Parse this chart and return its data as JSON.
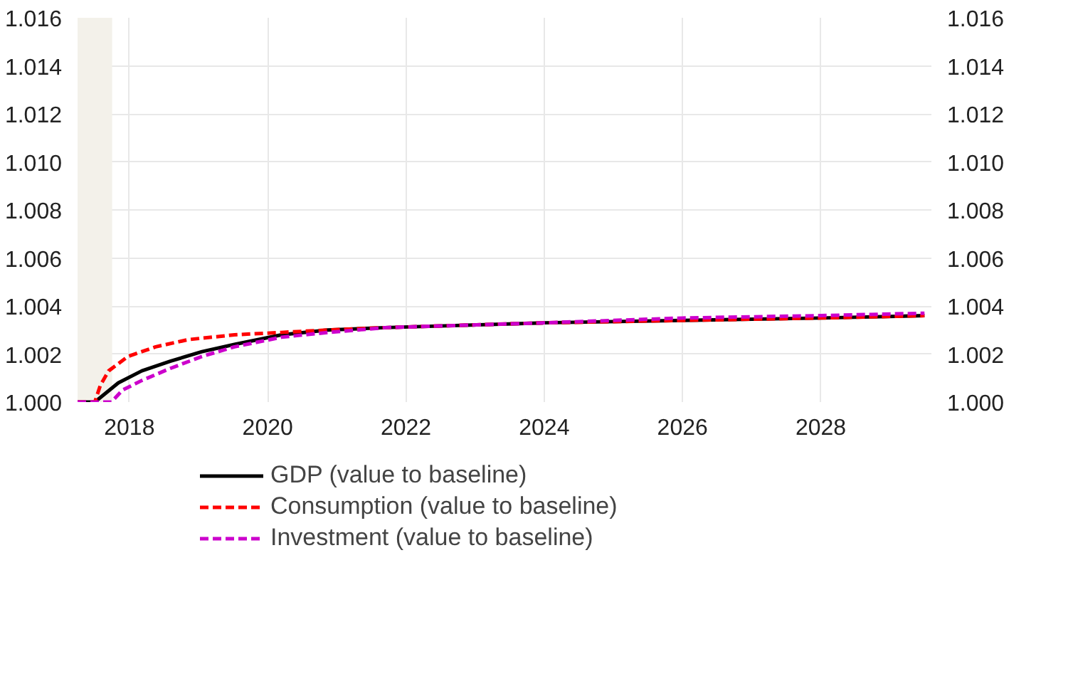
{
  "chart_data": {
    "type": "line",
    "xlim": [
      2017.25,
      2029.6
    ],
    "xticks": [
      2018,
      2020,
      2022,
      2024,
      2026,
      2028
    ],
    "ylim": [
      1.0,
      1.016
    ],
    "yticks": [
      {
        "value": 1.0,
        "label": "1.000"
      },
      {
        "value": 1.002,
        "label": "1.002"
      },
      {
        "value": 1.004,
        "label": "1.004"
      },
      {
        "value": 1.006,
        "label": "1.006"
      },
      {
        "value": 1.008,
        "label": "1.008"
      },
      {
        "value": 1.01,
        "label": "1.010"
      },
      {
        "value": 1.012,
        "label": "1.012"
      },
      {
        "value": 1.014,
        "label": "1.014"
      },
      {
        "value": 1.016,
        "label": "1.016"
      }
    ],
    "y2lim": [
      1.0,
      1.016
    ],
    "y2ticks": [
      {
        "value": 1.0,
        "label": "1.000"
      },
      {
        "value": 1.002,
        "label": "1.002"
      },
      {
        "value": 1.004,
        "label": "1.004"
      },
      {
        "value": 1.006,
        "label": "1.006"
      },
      {
        "value": 1.008,
        "label": "1.008"
      },
      {
        "value": 1.01,
        "label": "1.010"
      },
      {
        "value": 1.012,
        "label": "1.012"
      },
      {
        "value": 1.014,
        "label": "1.014"
      },
      {
        "value": 1.016,
        "label": "1.016"
      }
    ],
    "grid": true,
    "legend": "bottom",
    "bands": [
      {
        "axis": "x",
        "from": 2017.25,
        "to": 2017.75,
        "color": "#f3f1ea"
      }
    ],
    "series": [
      {
        "name": "GDP (value to baseline)",
        "color": "#000000",
        "line_style": "solid",
        "x": [
          2017.25,
          2017.5,
          2017.84,
          2018.18,
          2018.59,
          2019.05,
          2019.52,
          2020.2,
          2020.87,
          2021.7,
          2024,
          2026,
          2028,
          2029.5
        ],
        "values": [
          1.0,
          1.0,
          1.0008,
          1.0013,
          1.0017,
          1.0021,
          1.0024,
          1.0028,
          1.003,
          1.0031,
          1.0033,
          1.0034,
          1.0035,
          1.0036
        ]
      },
      {
        "name": "Consumption (value to baseline)",
        "color": "#ff0000",
        "line_style": "dashed",
        "x": [
          2017.25,
          2017.5,
          2017.58,
          2017.7,
          2017.98,
          2018.38,
          2018.85,
          2019.52,
          2020.2,
          2020.87,
          2021.7,
          2024,
          2026,
          2028,
          2029.5
        ],
        "values": [
          1.0,
          1.0,
          1.0007,
          1.0013,
          1.0019,
          1.0023,
          1.0026,
          1.0028,
          1.0029,
          1.003,
          1.0031,
          1.0033,
          1.0034,
          1.0035,
          1.0036
        ]
      },
      {
        "name": "Investment (value to baseline)",
        "color": "#cc00cc",
        "line_style": "dashed",
        "x": [
          2017.25,
          2017.74,
          2017.9,
          2018.18,
          2018.59,
          2019.05,
          2019.52,
          2020.2,
          2020.87,
          2021.7,
          2024,
          2026,
          2028,
          2029.5
        ],
        "values": [
          1.0,
          1.0,
          1.0005,
          1.0009,
          1.0014,
          1.0019,
          1.0023,
          1.0027,
          1.0029,
          1.0031,
          1.0033,
          1.0035,
          1.0036,
          1.0037
        ]
      }
    ]
  }
}
